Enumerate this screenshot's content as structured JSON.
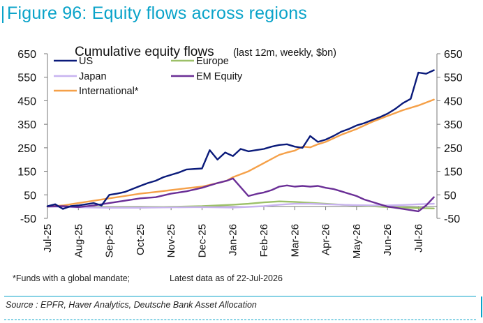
{
  "figure": {
    "title": "Figure 96: Equity flows across regions",
    "footnote": "*Funds with a global mandate;",
    "latest": "Latest data as of 22-Jul-2026",
    "source": "Source : EPFR, Haver Analytics, Deutsche Bank Asset Allocation"
  },
  "chart_data": {
    "type": "line",
    "title": "Cumulative equity flows",
    "subtitle": "(last 12m, weekly, $bn)",
    "xlabel": "",
    "ylabel": "",
    "ylim": [
      -50,
      650
    ],
    "yticks": [
      -50,
      50,
      150,
      250,
      350,
      450,
      550,
      650
    ],
    "ytick_labels": [
      "-50",
      "50",
      "150",
      "250",
      "350",
      "450",
      "550",
      "650"
    ],
    "xlim": [
      0,
      12.6
    ],
    "xticks": [
      0,
      1,
      2,
      3,
      4,
      5,
      6,
      7,
      8,
      9,
      10,
      11,
      12
    ],
    "xtick_labels": [
      "Jul-25",
      "Aug-25",
      "Sep-25",
      "Oct-25",
      "Nov-25",
      "Dec-25",
      "Jan-26",
      "Feb-26",
      "Mar-26",
      "Apr-26",
      "May-26",
      "Jun-26",
      "Jul-26"
    ],
    "grid": false,
    "legend_position": "top-left",
    "series": [
      {
        "name": "US",
        "color": "#0a1a7a",
        "x": [
          0,
          0.25,
          0.5,
          0.75,
          1.0,
          1.25,
          1.5,
          1.75,
          2.0,
          2.25,
          2.5,
          2.75,
          3.0,
          3.25,
          3.5,
          3.75,
          4.0,
          4.25,
          4.5,
          4.75,
          5.0,
          5.25,
          5.5,
          5.75,
          6.0,
          6.25,
          6.5,
          6.75,
          7.0,
          7.25,
          7.5,
          7.75,
          8.0,
          8.25,
          8.5,
          8.75,
          9.0,
          9.25,
          9.5,
          9.75,
          10.0,
          10.25,
          10.5,
          10.75,
          11.0,
          11.25,
          11.5,
          11.75,
          12.0,
          12.25,
          12.5
        ],
        "values": [
          2,
          10,
          -10,
          2,
          5,
          10,
          15,
          5,
          50,
          55,
          62,
          75,
          88,
          100,
          110,
          125,
          135,
          145,
          158,
          160,
          162,
          240,
          200,
          230,
          215,
          245,
          235,
          240,
          245,
          255,
          262,
          265,
          255,
          250,
          300,
          275,
          285,
          300,
          318,
          330,
          345,
          355,
          368,
          380,
          395,
          415,
          440,
          458,
          570,
          565,
          580
        ]
      },
      {
        "name": "Europe",
        "color": "#9cc068",
        "x": [
          0,
          1,
          2,
          3,
          4,
          5,
          6,
          6.5,
          7,
          7.5,
          8,
          8.5,
          9,
          9.5,
          10,
          10.5,
          11,
          11.5,
          12,
          12.5
        ],
        "values": [
          0,
          -2,
          -3,
          -4,
          -1,
          2,
          8,
          12,
          18,
          22,
          20,
          16,
          12,
          8,
          5,
          2,
          -2,
          -4,
          -6,
          -8
        ]
      },
      {
        "name": "Japan",
        "color": "#c8b3f0",
        "x": [
          0,
          1,
          2,
          3,
          4,
          5,
          6,
          7,
          7.5,
          8,
          8.5,
          9,
          9.5,
          10,
          10.5,
          11,
          11.5,
          12,
          12.5
        ],
        "values": [
          0,
          -3,
          -5,
          -5,
          -3,
          -2,
          -4,
          2,
          8,
          12,
          12,
          10,
          8,
          6,
          5,
          5,
          7,
          10,
          12
        ]
      },
      {
        "name": "EM Equity",
        "color": "#6a2e96",
        "x": [
          0,
          0.5,
          1,
          1.5,
          2,
          2.5,
          3,
          3.5,
          4,
          4.5,
          5,
          5.5,
          5.8,
          6.0,
          6.5,
          6.8,
          7.0,
          7.25,
          7.5,
          7.75,
          8.0,
          8.25,
          8.5,
          8.75,
          9.0,
          9.25,
          9.5,
          9.75,
          10.0,
          10.25,
          10.5,
          10.75,
          11.0,
          11.25,
          11.5,
          11.75,
          12.0,
          12.25,
          12.5
        ],
        "values": [
          0,
          2,
          -2,
          5,
          15,
          25,
          35,
          40,
          55,
          65,
          80,
          100,
          110,
          120,
          45,
          55,
          60,
          70,
          85,
          90,
          85,
          88,
          85,
          88,
          80,
          75,
          65,
          55,
          45,
          30,
          20,
          10,
          0,
          -5,
          -10,
          -15,
          -20,
          5,
          40
        ]
      },
      {
        "name": "International*",
        "color": "#f5a048",
        "x": [
          0,
          0.5,
          1,
          1.5,
          2,
          2.5,
          3,
          3.5,
          4,
          4.5,
          5,
          5.5,
          5.8,
          6.0,
          6.5,
          7,
          7.5,
          7.75,
          8.0,
          8.25,
          8.5,
          8.75,
          9.0,
          9.5,
          10,
          10.5,
          11,
          11.5,
          12,
          12.5
        ],
        "values": [
          0,
          5,
          15,
          25,
          35,
          45,
          55,
          62,
          70,
          78,
          85,
          100,
          110,
          125,
          150,
          185,
          220,
          230,
          238,
          255,
          252,
          265,
          275,
          305,
          330,
          360,
          385,
          410,
          430,
          455
        ]
      }
    ]
  }
}
